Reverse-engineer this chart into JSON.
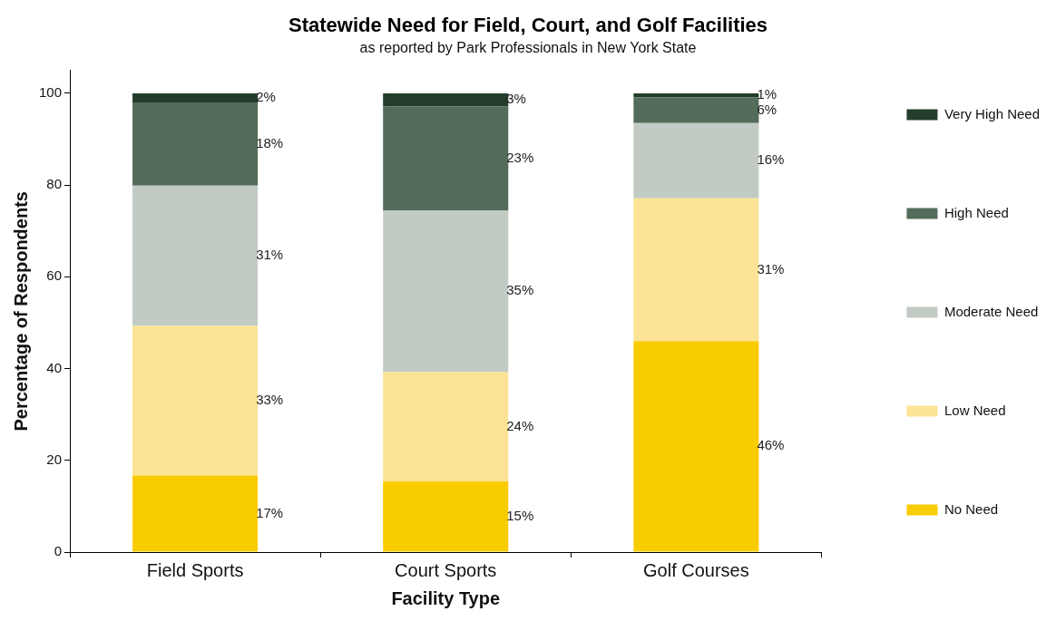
{
  "chart_data": {
    "type": "bar",
    "title": "Statewide Need for Field, Court, and Golf Facilities",
    "subtitle": "as reported by Park Professionals in New York State",
    "xlabel": "Facility Type",
    "ylabel": "Percentage of Respondents",
    "categories": [
      "Field Sports",
      "Court Sports",
      "Golf Courses"
    ],
    "stacked": true,
    "ylim": [
      0,
      105
    ],
    "yticks": [
      0,
      20,
      40,
      60,
      80,
      100
    ],
    "grid": false,
    "legend": "right",
    "series": [
      {
        "name": "No Need",
        "color": "#f9cc00",
        "values": [
          16.7,
          15.4,
          46.0
        ],
        "value_labels": [
          "17%",
          "15%",
          "46%"
        ]
      },
      {
        "name": "Low Need",
        "color": "#fde396",
        "values": [
          32.6,
          23.8,
          31.1
        ],
        "value_labels": [
          "33%",
          "24%",
          "31%"
        ]
      },
      {
        "name": "Moderate Need",
        "color": "#c2cbc3",
        "values": [
          30.6,
          35.3,
          16.4
        ],
        "value_labels": [
          "31%",
          "35%",
          "16%"
        ]
      },
      {
        "name": "High Need",
        "color": "#536b59",
        "values": [
          18.1,
          22.6,
          5.6
        ],
        "value_labels": [
          "18%",
          "23%",
          "6%"
        ]
      },
      {
        "name": "Very High Need",
        "color": "#233d2a",
        "values": [
          2.0,
          2.9,
          0.9
        ],
        "value_labels": [
          "2%",
          "3%",
          "1%"
        ]
      }
    ]
  }
}
